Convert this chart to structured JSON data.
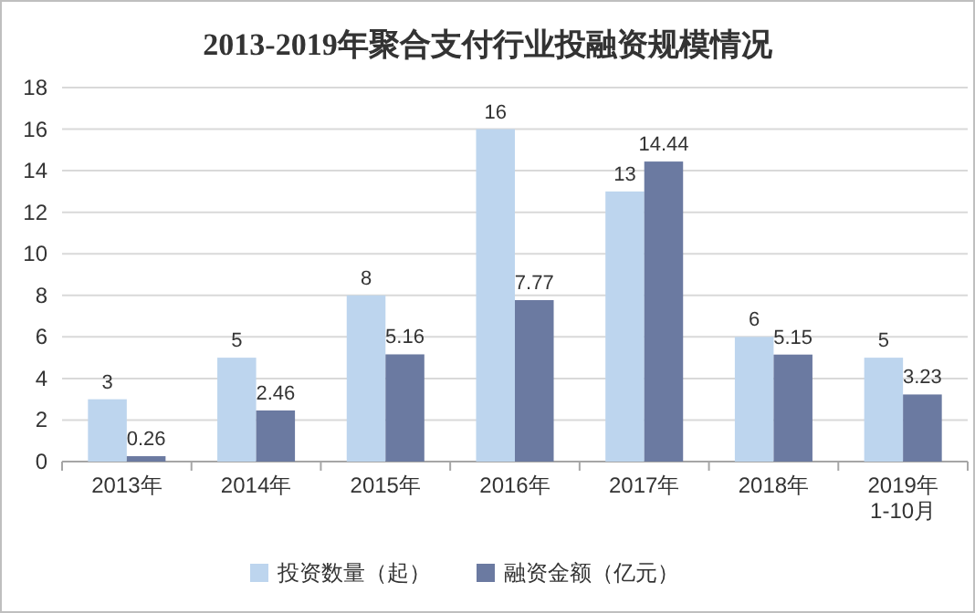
{
  "chart_data": {
    "type": "bar",
    "title": "2013-2019年聚合支付行业投融资规模情况",
    "categories": [
      "2013年",
      "2014年",
      "2015年",
      "2016年",
      "2017年",
      "2018年",
      "2019年\n1-10月"
    ],
    "series": [
      {
        "name": "投资数量（起）",
        "color": "#bdd5ee",
        "values": [
          3,
          5,
          8,
          16,
          13,
          6,
          5
        ]
      },
      {
        "name": "融资金额（亿元）",
        "color": "#6b7aa1",
        "values": [
          0.26,
          2.46,
          5.16,
          7.77,
          14.44,
          5.15,
          3.23
        ]
      }
    ],
    "ylim": [
      0,
      18
    ],
    "yticks": [
      0,
      2,
      4,
      6,
      8,
      10,
      12,
      14,
      16,
      18
    ],
    "grid": "y",
    "data_labels": true,
    "legend": "bottom"
  }
}
